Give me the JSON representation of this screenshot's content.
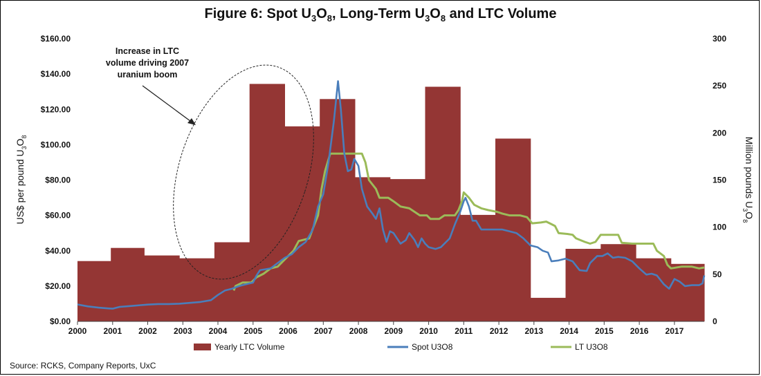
{
  "chart_data": {
    "type": "bar+line",
    "title": {
      "pre": "Figure 6: Spot U",
      "s1": "3",
      "mid1": "O",
      "s2": "8",
      "mid2": ", Long-Term U",
      "s3": "3",
      "mid3": "O",
      "s4": "8",
      "post": " and LTC Volume"
    },
    "y_left": {
      "label": {
        "main": "US$ per pound U",
        "s1": "3",
        "mid": "O",
        "s2": "8"
      },
      "ticks": [
        "$0.00",
        "$20.00",
        "$40.00",
        "$60.00",
        "$80.00",
        "$100.00",
        "$120.00",
        "$140.00",
        "$160.00"
      ],
      "ylim": [
        0,
        160
      ]
    },
    "y_right": {
      "label": {
        "main": "Million pounds U",
        "s1": "3",
        "mid": "O",
        "s2": "8"
      },
      "ticks": [
        "0",
        "50",
        "100",
        "150",
        "200",
        "250",
        "300"
      ],
      "ylim": [
        0,
        300
      ]
    },
    "x_axis": {
      "ticks": [
        "2000",
        "2001",
        "2002",
        "2003",
        "2004",
        "2005",
        "2006",
        "2007",
        "2008",
        "2009",
        "2010",
        "2011",
        "2012",
        "2013",
        "2014",
        "2015",
        "2016",
        "2017"
      ],
      "range": [
        2000,
        2017.85
      ]
    },
    "series": [
      {
        "name": "Yearly LTC Volume",
        "kind": "step-area",
        "axis": "right",
        "color": "#943634",
        "steps": [
          [
            2000.0,
            2000.95,
            64
          ],
          [
            2000.95,
            2001.9,
            78
          ],
          [
            2001.9,
            2002.9,
            70
          ],
          [
            2002.9,
            2003.9,
            67
          ],
          [
            2003.9,
            2004.9,
            84
          ],
          [
            2004.9,
            2005.9,
            252
          ],
          [
            2005.9,
            2006.9,
            207
          ],
          [
            2006.9,
            2007.9,
            236
          ],
          [
            2007.9,
            2008.9,
            153
          ],
          [
            2008.9,
            2009.9,
            151
          ],
          [
            2009.9,
            2010.9,
            249
          ],
          [
            2010.9,
            2011.9,
            113
          ],
          [
            2011.9,
            2012.9,
            194
          ],
          [
            2012.9,
            2013.9,
            25
          ],
          [
            2013.9,
            2014.9,
            77
          ],
          [
            2014.9,
            2015.9,
            82
          ],
          [
            2015.9,
            2016.9,
            67
          ],
          [
            2016.9,
            2017.85,
            61
          ]
        ]
      },
      {
        "name": "Spot U3O8",
        "kind": "line",
        "axis": "left",
        "color": "#4a7ebb",
        "points": [
          [
            2000.0,
            9.6
          ],
          [
            2000.3,
            8.5
          ],
          [
            2000.6,
            7.8
          ],
          [
            2000.9,
            7.3
          ],
          [
            2001.0,
            7.2
          ],
          [
            2001.2,
            8.2
          ],
          [
            2001.5,
            8.7
          ],
          [
            2001.8,
            9.2
          ],
          [
            2002.0,
            9.5
          ],
          [
            2002.3,
            9.8
          ],
          [
            2002.6,
            9.8
          ],
          [
            2002.9,
            10.0
          ],
          [
            2003.2,
            10.5
          ],
          [
            2003.5,
            11.0
          ],
          [
            2003.8,
            12.0
          ],
          [
            2004.0,
            15.0
          ],
          [
            2004.2,
            17.5
          ],
          [
            2004.4,
            18.5
          ],
          [
            2004.6,
            20.0
          ],
          [
            2004.8,
            21.0
          ],
          [
            2005.0,
            22.0
          ],
          [
            2005.1,
            26.0
          ],
          [
            2005.2,
            29.0
          ],
          [
            2005.5,
            30.0
          ],
          [
            2005.7,
            33.0
          ],
          [
            2005.9,
            36.0
          ],
          [
            2006.1,
            38.0
          ],
          [
            2006.3,
            42.0
          ],
          [
            2006.5,
            45.0
          ],
          [
            2006.7,
            52.0
          ],
          [
            2006.85,
            65.0
          ],
          [
            2007.0,
            72.0
          ],
          [
            2007.15,
            90.0
          ],
          [
            2007.3,
            113.0
          ],
          [
            2007.42,
            136.0
          ],
          [
            2007.5,
            120.0
          ],
          [
            2007.6,
            95.0
          ],
          [
            2007.7,
            85.0
          ],
          [
            2007.8,
            86.0
          ],
          [
            2007.88,
            92.0
          ],
          [
            2008.0,
            88.0
          ],
          [
            2008.1,
            75.0
          ],
          [
            2008.25,
            65.0
          ],
          [
            2008.4,
            61.0
          ],
          [
            2008.5,
            58.0
          ],
          [
            2008.6,
            64.0
          ],
          [
            2008.7,
            52.0
          ],
          [
            2008.8,
            45.0
          ],
          [
            2008.9,
            51.0
          ],
          [
            2009.0,
            50.0
          ],
          [
            2009.1,
            47.0
          ],
          [
            2009.2,
            44.0
          ],
          [
            2009.35,
            46.0
          ],
          [
            2009.45,
            50.0
          ],
          [
            2009.6,
            46.0
          ],
          [
            2009.7,
            42.0
          ],
          [
            2009.8,
            47.0
          ],
          [
            2009.9,
            44.0
          ],
          [
            2010.0,
            42.0
          ],
          [
            2010.2,
            41.0
          ],
          [
            2010.35,
            42.0
          ],
          [
            2010.5,
            45.0
          ],
          [
            2010.6,
            47.0
          ],
          [
            2010.75,
            55.0
          ],
          [
            2010.9,
            62.0
          ],
          [
            2011.0,
            68.0
          ],
          [
            2011.05,
            70.0
          ],
          [
            2011.15,
            65.0
          ],
          [
            2011.25,
            57.0
          ],
          [
            2011.35,
            57.0
          ],
          [
            2011.5,
            52.0
          ],
          [
            2011.7,
            52.0
          ],
          [
            2011.9,
            52.0
          ],
          [
            2012.1,
            52.0
          ],
          [
            2012.3,
            51.0
          ],
          [
            2012.5,
            50.0
          ],
          [
            2012.7,
            47.0
          ],
          [
            2012.9,
            43.0
          ],
          [
            2013.1,
            42.0
          ],
          [
            2013.25,
            40.0
          ],
          [
            2013.4,
            39.0
          ],
          [
            2013.5,
            34.0
          ],
          [
            2013.7,
            34.5
          ],
          [
            2013.9,
            35.5
          ],
          [
            2014.1,
            34.0
          ],
          [
            2014.3,
            29.0
          ],
          [
            2014.5,
            28.5
          ],
          [
            2014.6,
            33.0
          ],
          [
            2014.8,
            37.0
          ],
          [
            2014.95,
            37.0
          ],
          [
            2015.1,
            38.5
          ],
          [
            2015.25,
            36.0
          ],
          [
            2015.4,
            36.5
          ],
          [
            2015.6,
            36.0
          ],
          [
            2015.8,
            34.0
          ],
          [
            2016.0,
            30.0
          ],
          [
            2016.2,
            26.5
          ],
          [
            2016.35,
            27.0
          ],
          [
            2016.5,
            26.0
          ],
          [
            2016.7,
            21.0
          ],
          [
            2016.85,
            18.5
          ],
          [
            2017.0,
            24.0
          ],
          [
            2017.15,
            22.5
          ],
          [
            2017.3,
            20.0
          ],
          [
            2017.5,
            20.5
          ],
          [
            2017.7,
            20.5
          ],
          [
            2017.8,
            21.5
          ],
          [
            2017.85,
            26.0
          ]
        ]
      },
      {
        "name": "LT U3O8",
        "kind": "step-line",
        "axis": "left",
        "color": "#9bbb59",
        "points": [
          [
            2004.45,
            17.5
          ],
          [
            2004.5,
            20.0
          ],
          [
            2004.7,
            22.0
          ],
          [
            2004.95,
            22.0
          ],
          [
            2005.1,
            25.0
          ],
          [
            2005.3,
            27.0
          ],
          [
            2005.5,
            30.0
          ],
          [
            2005.7,
            31.0
          ],
          [
            2005.9,
            35.0
          ],
          [
            2006.15,
            40.0
          ],
          [
            2006.3,
            45.5
          ],
          [
            2006.6,
            47.0
          ],
          [
            2006.75,
            55.0
          ],
          [
            2006.85,
            60.0
          ],
          [
            2006.95,
            75.0
          ],
          [
            2007.05,
            85.0
          ],
          [
            2007.2,
            95.0
          ],
          [
            2007.35,
            95.0
          ],
          [
            2007.4,
            95.0
          ],
          [
            2007.45,
            95.0
          ],
          [
            2007.5,
            95.0
          ],
          [
            2007.8,
            95.0
          ],
          [
            2008.1,
            95.0
          ],
          [
            2008.2,
            90.0
          ],
          [
            2008.3,
            80.0
          ],
          [
            2008.5,
            75.0
          ],
          [
            2008.6,
            70.0
          ],
          [
            2008.85,
            70.0
          ],
          [
            2009.0,
            68.0
          ],
          [
            2009.2,
            65.0
          ],
          [
            2009.45,
            64.0
          ],
          [
            2009.6,
            62.0
          ],
          [
            2009.75,
            60.0
          ],
          [
            2009.95,
            60.0
          ],
          [
            2010.05,
            58.0
          ],
          [
            2010.3,
            58.0
          ],
          [
            2010.45,
            60.0
          ],
          [
            2010.75,
            60.0
          ],
          [
            2010.85,
            63.0
          ],
          [
            2010.95,
            68.0
          ],
          [
            2011.0,
            73.0
          ],
          [
            2011.15,
            70.0
          ],
          [
            2011.3,
            66.0
          ],
          [
            2011.5,
            64.0
          ],
          [
            2011.7,
            63.0
          ],
          [
            2011.95,
            62.0
          ],
          [
            2012.1,
            61.0
          ],
          [
            2012.3,
            60.0
          ],
          [
            2012.6,
            60.0
          ],
          [
            2012.8,
            59.0
          ],
          [
            2012.95,
            55.5
          ],
          [
            2013.2,
            56.0
          ],
          [
            2013.35,
            56.5
          ],
          [
            2013.5,
            55.0
          ],
          [
            2013.6,
            54.0
          ],
          [
            2013.7,
            50.0
          ],
          [
            2013.95,
            49.5
          ],
          [
            2014.1,
            49.0
          ],
          [
            2014.2,
            47.0
          ],
          [
            2014.45,
            45.0
          ],
          [
            2014.6,
            44.0
          ],
          [
            2014.75,
            45.0
          ],
          [
            2014.9,
            49.0
          ],
          [
            2015.0,
            49.0
          ],
          [
            2015.4,
            49.0
          ],
          [
            2015.5,
            44.5
          ],
          [
            2015.8,
            44.0
          ],
          [
            2016.4,
            44.0
          ],
          [
            2016.5,
            40.0
          ],
          [
            2016.7,
            37.0
          ],
          [
            2016.8,
            32.0
          ],
          [
            2016.9,
            30.0
          ],
          [
            2017.2,
            31.0
          ],
          [
            2017.5,
            31.0
          ],
          [
            2017.7,
            30.0
          ],
          [
            2017.85,
            30.5
          ]
        ]
      }
    ],
    "legend": [
      {
        "label": "Yearly LTC Volume",
        "kind": "box",
        "color": "#943634"
      },
      {
        "label": "Spot U3O8",
        "kind": "line",
        "color": "#4a7ebb"
      },
      {
        "label": "LT U3O8",
        "kind": "line",
        "color": "#9bbb59"
      }
    ],
    "annotation": {
      "lines": [
        "Increase in LTC",
        "volume driving 2007",
        "uranium boom"
      ]
    },
    "source": "Source: RCKS, Company Reports, UxC"
  }
}
